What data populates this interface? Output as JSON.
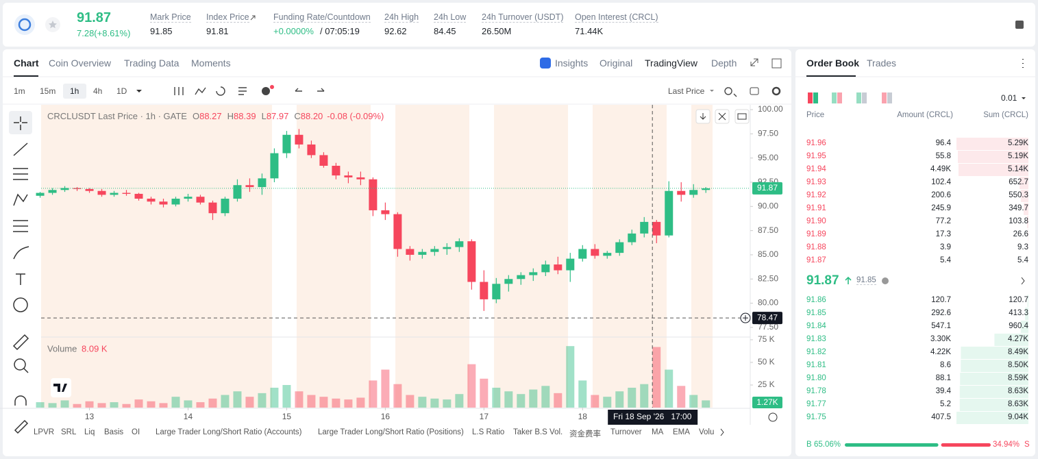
{
  "header": {
    "price": "91.87",
    "change": "7.28(+8.61%)",
    "stats": [
      {
        "label": "Mark Price",
        "value": "91.85"
      },
      {
        "label": "Index Price",
        "value": "91.81"
      },
      {
        "label": "Funding Rate/Countdown",
        "value": "+0.0000%",
        "countdown": "/ 07:05:19"
      },
      {
        "label": "24h High",
        "value": "92.62"
      },
      {
        "label": "24h Low",
        "value": "84.45"
      },
      {
        "label": "24h Turnover (USDT)",
        "value": "26.50M"
      },
      {
        "label": "Open Interest (CRCL)",
        "value": "71.44K"
      }
    ]
  },
  "tabs": [
    "Chart",
    "Coin Overview",
    "Trading Data",
    "Moments"
  ],
  "views": [
    "Insights",
    "Original",
    "TradingView",
    "Depth"
  ],
  "intervals": [
    "1m",
    "15m",
    "1h",
    "4h",
    "1D"
  ],
  "price_type": "Last Price",
  "legend": {
    "title": "CRCLUSDT Last Price · 1h · GATE",
    "ohlc": [
      {
        "label": "O",
        "value": "88.27"
      },
      {
        "label": "H",
        "value": "88.39"
      },
      {
        "label": "L",
        "value": "87.97"
      },
      {
        "label": "C",
        "value": "88.20"
      }
    ],
    "change": "-0.08 (-0.09%)",
    "volume_label": "Volume",
    "volume_value": "8.09 K"
  },
  "chart": {
    "type": "candlestick",
    "x": [
      12.5,
      12.625,
      12.75,
      12.875,
      13,
      13.125,
      13.25,
      13.375,
      13.5,
      13.625,
      13.75,
      13.875,
      14,
      14.125,
      14.25,
      14.375,
      14.5,
      14.625,
      14.75,
      14.875,
      15,
      15.125,
      15.25,
      15.375,
      15.5,
      15.625,
      15.75,
      15.875,
      16,
      16.125,
      16.25,
      16.375,
      16.5,
      16.625,
      16.75,
      16.875,
      17,
      17.125,
      17.25,
      17.375,
      17.5,
      17.625,
      17.75,
      17.875,
      18,
      18.125,
      18.25,
      18.375,
      18.5,
      18.625,
      18.75,
      18.875,
      19,
      19.125,
      19.25
    ],
    "open": [
      91.1,
      91.4,
      91.7,
      91.9,
      91.8,
      91.6,
      91.2,
      91.4,
      91.3,
      90.8,
      90.5,
      90.2,
      90.8,
      91.0,
      90.4,
      89.3,
      90.8,
      92.2,
      92.0,
      92.9,
      95.5,
      97.4,
      96.4,
      95.3,
      94.2,
      93.2,
      93.0,
      92.8,
      89.6,
      89.2,
      85.6,
      85.0,
      85.3,
      85.6,
      85.8,
      86.4,
      82.2,
      80.4,
      82.0,
      82.5,
      82.9,
      83.2,
      84.0,
      83.4,
      84.6,
      85.6,
      84.9,
      85.2,
      86.3,
      87.2,
      88.4,
      87.0,
      91.6,
      91.2,
      91.7
    ],
    "high": [
      91.5,
      91.9,
      92.1,
      92.0,
      91.9,
      91.8,
      91.6,
      91.7,
      91.4,
      91.0,
      90.8,
      91.0,
      91.3,
      91.2,
      90.6,
      91.0,
      92.8,
      92.9,
      93.4,
      96.0,
      97.8,
      98.0,
      96.8,
      95.6,
      94.5,
      93.6,
      93.6,
      93.0,
      90.4,
      89.4,
      85.9,
      85.6,
      85.9,
      86.2,
      86.7,
      86.6,
      83.4,
      82.6,
      82.9,
      83.2,
      83.6,
      84.4,
      84.8,
      85.2,
      86.0,
      86.1,
      85.4,
      86.6,
      87.6,
      88.9,
      88.6,
      92.6,
      92.5,
      92.3,
      92.0
    ],
    "low": [
      90.9,
      91.2,
      91.5,
      91.6,
      91.4,
      91.0,
      91.0,
      91.1,
      90.6,
      90.2,
      89.9,
      90.0,
      90.5,
      90.2,
      88.6,
      89.0,
      90.5,
      91.5,
      91.2,
      92.5,
      95.0,
      96.0,
      95.0,
      94.0,
      92.8,
      92.4,
      92.2,
      89.0,
      88.6,
      84.8,
      84.4,
      84.6,
      84.9,
      85.0,
      85.3,
      81.4,
      79.2,
      80.0,
      81.2,
      81.9,
      82.3,
      82.8,
      83.0,
      82.2,
      84.3,
      84.6,
      84.6,
      84.9,
      86.0,
      86.8,
      86.2,
      86.8,
      90.5,
      90.9,
      91.4
    ],
    "close": [
      91.4,
      91.7,
      91.9,
      91.8,
      91.6,
      91.2,
      91.4,
      91.3,
      90.8,
      90.5,
      90.2,
      90.8,
      91.0,
      90.4,
      89.3,
      90.8,
      92.2,
      92.0,
      92.9,
      95.5,
      97.4,
      96.4,
      95.3,
      94.2,
      93.2,
      93.0,
      92.8,
      89.6,
      89.2,
      85.6,
      85.0,
      85.3,
      85.6,
      85.8,
      86.4,
      82.2,
      80.4,
      82.0,
      82.5,
      82.9,
      83.2,
      84.0,
      83.4,
      84.6,
      85.6,
      84.9,
      85.2,
      86.3,
      87.2,
      88.4,
      87.0,
      91.6,
      91.2,
      91.7,
      91.87
    ],
    "volume": [
      6,
      5,
      8,
      4,
      7,
      5,
      6,
      4,
      9,
      7,
      5,
      12,
      8,
      6,
      10,
      14,
      18,
      12,
      16,
      22,
      25,
      18,
      14,
      12,
      10,
      9,
      11,
      30,
      42,
      26,
      14,
      12,
      10,
      9,
      15,
      48,
      32,
      22,
      18,
      15,
      20,
      24,
      16,
      68,
      30,
      14,
      12,
      18,
      22,
      26,
      67,
      42,
      24,
      14,
      8
    ],
    "up_color": "#2ebd85",
    "down_color": "#f6465d",
    "xlim": [
      12.51,
      19.7
    ],
    "xticks": [
      13,
      14,
      15,
      16,
      17,
      18
    ],
    "ylim": [
      76.5,
      100.5
    ],
    "yticks": [
      {
        "value": 100,
        "label": "100.00"
      },
      {
        "value": 97.5,
        "label": "97.50"
      },
      {
        "value": 95,
        "label": "95.00"
      },
      {
        "value": 92.5,
        "label": "92.50"
      },
      {
        "value": 90,
        "label": "90.00"
      },
      {
        "value": 87.5,
        "label": "87.50"
      },
      {
        "value": 85,
        "label": "85.00"
      },
      {
        "value": 82.5,
        "label": "82.50"
      },
      {
        "value": 80,
        "label": "80.00"
      },
      {
        "value": 77.5,
        "label": "77.50"
      }
    ],
    "vlim": [
      0,
      78
    ],
    "vticks": [
      {
        "value": 75,
        "label": "75 K"
      },
      {
        "value": 50,
        "label": "50 K"
      },
      {
        "value": 25,
        "label": "25 K"
      }
    ],
    "last_price": 91.87,
    "crosshair_price": 78.47,
    "crosshair_x": 18.708,
    "crosshair_time": "Fri 18 Sep '26   17:00",
    "volume_tag": "1.27K"
  },
  "indicators": [
    "LPVR",
    "SRL",
    "Liq",
    "Basis",
    "OI",
    "Large Trader Long/Short Ratio (Accounts)",
    "Large Trader Long/Short Ratio (Positions)",
    "L.S Ratio",
    "Taker B.S Vol.",
    "资金费率",
    "Turnover",
    "MA",
    "EMA",
    "Volu"
  ],
  "order_book": {
    "tabs": [
      "Order Book",
      "Trades"
    ],
    "step": "0.01",
    "columns": [
      "Price",
      "Amount (CRCL)",
      "Sum (CRCL)"
    ],
    "asks": [
      [
        "91.96",
        "96.4",
        "5.29K"
      ],
      [
        "91.95",
        "55.8",
        "5.19K"
      ],
      [
        "91.94",
        "4.49K",
        "5.14K"
      ],
      [
        "91.93",
        "102.4",
        "652.7"
      ],
      [
        "91.92",
        "200.6",
        "550.3"
      ],
      [
        "91.91",
        "245.9",
        "349.7"
      ],
      [
        "91.90",
        "77.2",
        "103.8"
      ],
      [
        "91.89",
        "17.3",
        "26.6"
      ],
      [
        "91.88",
        "3.9",
        "9.3"
      ],
      [
        "91.87",
        "5.4",
        "5.4"
      ]
    ],
    "last": "91.87",
    "mark": "91.85",
    "bids": [
      [
        "91.86",
        "120.7",
        "120.7"
      ],
      [
        "91.85",
        "292.6",
        "413.3"
      ],
      [
        "91.84",
        "547.1",
        "960.4"
      ],
      [
        "91.83",
        "3.30K",
        "4.27K"
      ],
      [
        "91.82",
        "4.22K",
        "8.49K"
      ],
      [
        "91.81",
        "8.6",
        "8.50K"
      ],
      [
        "91.80",
        "88.1",
        "8.59K"
      ],
      [
        "91.78",
        "39.4",
        "8.63K"
      ],
      [
        "91.77",
        "5.2",
        "8.63K"
      ],
      [
        "91.75",
        "407.5",
        "9.04K"
      ]
    ],
    "buy": {
      "value": 65.06,
      "label": "65.06%"
    },
    "sell": {
      "value": 34.94,
      "label": "34.94%"
    },
    "buy_letter": "B",
    "sell_letter": "S"
  }
}
